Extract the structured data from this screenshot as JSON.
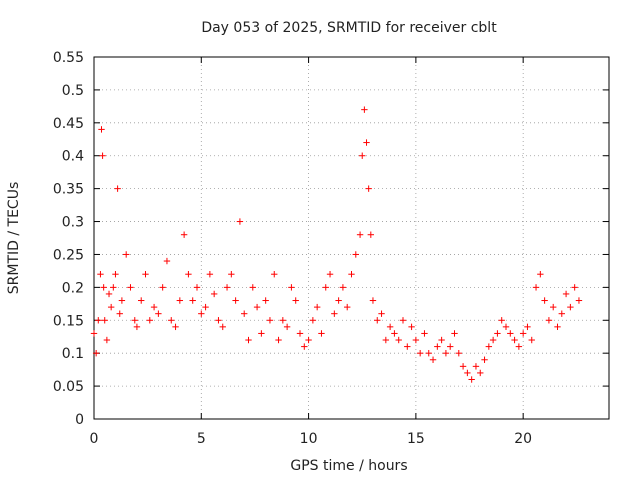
{
  "chart_data": {
    "type": "scatter",
    "title": "Day 053 of 2025, SRMTID for receiver cblt",
    "xlabel": "GPS time / hours",
    "ylabel": "SRMTID / TECUs",
    "xlim": [
      0,
      24
    ],
    "ylim": [
      0,
      0.55
    ],
    "xticks": [
      "0",
      "5",
      "10",
      "15",
      "20"
    ],
    "yticks": [
      "0",
      "0.05",
      "0.1",
      "0.15",
      "0.2",
      "0.25",
      "0.3",
      "0.35",
      "0.4",
      "0.45",
      "0.5",
      "0.55"
    ],
    "grid": true,
    "marker": "+",
    "color": "#ff0000",
    "series": [
      {
        "name": "SRMTID",
        "x": [
          0.0,
          0.1,
          0.2,
          0.3,
          0.35,
          0.4,
          0.45,
          0.5,
          0.6,
          0.7,
          0.8,
          0.9,
          1.0,
          1.1,
          1.2,
          1.3,
          1.5,
          1.7,
          1.9,
          2.0,
          2.2,
          2.4,
          2.6,
          2.8,
          3.0,
          3.2,
          3.4,
          3.6,
          3.8,
          4.0,
          4.2,
          4.4,
          4.6,
          4.8,
          5.0,
          5.2,
          5.4,
          5.6,
          5.8,
          6.0,
          6.2,
          6.4,
          6.6,
          6.8,
          7.0,
          7.2,
          7.4,
          7.6,
          7.8,
          8.0,
          8.2,
          8.4,
          8.6,
          8.8,
          9.0,
          9.2,
          9.4,
          9.6,
          9.8,
          10.0,
          10.2,
          10.4,
          10.6,
          10.8,
          11.0,
          11.2,
          11.4,
          11.6,
          11.8,
          12.0,
          12.2,
          12.4,
          12.5,
          12.6,
          12.7,
          12.8,
          12.9,
          13.0,
          13.2,
          13.4,
          13.6,
          13.8,
          14.0,
          14.2,
          14.4,
          14.6,
          14.8,
          15.0,
          15.2,
          15.4,
          15.6,
          15.8,
          16.0,
          16.2,
          16.4,
          16.6,
          16.8,
          17.0,
          17.2,
          17.4,
          17.6,
          17.8,
          18.0,
          18.2,
          18.4,
          18.6,
          18.8,
          19.0,
          19.2,
          19.4,
          19.6,
          19.8,
          20.0,
          20.2,
          20.4,
          20.6,
          20.8,
          21.0,
          21.2,
          21.4,
          21.6,
          21.8,
          22.0,
          22.2,
          22.4,
          22.6
        ],
        "y": [
          0.13,
          0.1,
          0.15,
          0.22,
          0.44,
          0.4,
          0.2,
          0.15,
          0.12,
          0.19,
          0.17,
          0.2,
          0.22,
          0.35,
          0.16,
          0.18,
          0.25,
          0.2,
          0.15,
          0.14,
          0.18,
          0.22,
          0.15,
          0.17,
          0.16,
          0.2,
          0.24,
          0.15,
          0.14,
          0.18,
          0.28,
          0.22,
          0.18,
          0.2,
          0.16,
          0.17,
          0.22,
          0.19,
          0.15,
          0.14,
          0.2,
          0.22,
          0.18,
          0.3,
          0.16,
          0.12,
          0.2,
          0.17,
          0.13,
          0.18,
          0.15,
          0.22,
          0.12,
          0.15,
          0.14,
          0.2,
          0.18,
          0.13,
          0.11,
          0.12,
          0.15,
          0.17,
          0.13,
          0.2,
          0.22,
          0.16,
          0.18,
          0.2,
          0.17,
          0.22,
          0.25,
          0.28,
          0.4,
          0.47,
          0.42,
          0.35,
          0.28,
          0.18,
          0.15,
          0.16,
          0.12,
          0.14,
          0.13,
          0.12,
          0.15,
          0.11,
          0.14,
          0.12,
          0.1,
          0.13,
          0.1,
          0.09,
          0.11,
          0.12,
          0.1,
          0.11,
          0.13,
          0.1,
          0.08,
          0.07,
          0.06,
          0.08,
          0.07,
          0.09,
          0.11,
          0.12,
          0.13,
          0.15,
          0.14,
          0.13,
          0.12,
          0.11,
          0.13,
          0.14,
          0.12,
          0.2,
          0.22,
          0.18,
          0.15,
          0.17,
          0.14,
          0.16,
          0.19,
          0.17,
          0.2,
          0.18
        ]
      }
    ]
  }
}
